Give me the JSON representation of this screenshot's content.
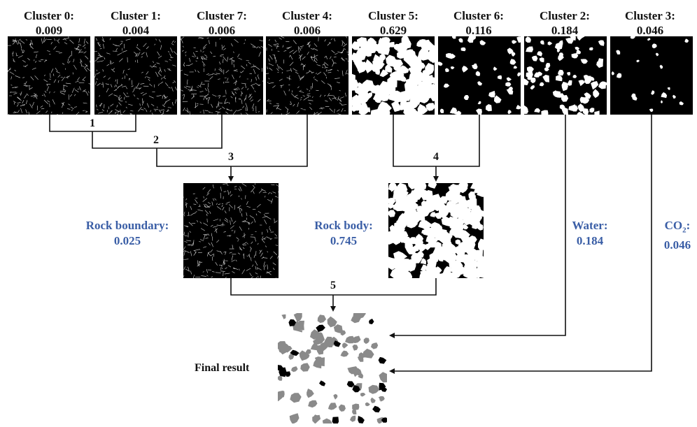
{
  "clusters": [
    {
      "name": "Cluster 0:",
      "value": "0.009",
      "texture": "boundary"
    },
    {
      "name": "Cluster 1:",
      "value": "0.004",
      "texture": "boundary"
    },
    {
      "name": "Cluster 7:",
      "value": "0.006",
      "texture": "boundary"
    },
    {
      "name": "Cluster 4:",
      "value": "0.006",
      "texture": "boundary"
    },
    {
      "name": "Cluster 5:",
      "value": "0.629",
      "texture": "body"
    },
    {
      "name": "Cluster 6:",
      "value": "0.116",
      "texture": "sparse-body"
    },
    {
      "name": "Cluster 2:",
      "value": "0.184",
      "texture": "water"
    },
    {
      "name": "Cluster 3:",
      "value": "0.046",
      "texture": "co2"
    }
  ],
  "steps": [
    "1",
    "2",
    "3",
    "4",
    "5"
  ],
  "phases": {
    "rock_boundary": {
      "name": "Rock boundary:",
      "value": "0.025"
    },
    "rock_body": {
      "name": "Rock body:",
      "value": "0.745"
    },
    "water": {
      "name": "Water:",
      "value": "0.184"
    },
    "co2": {
      "name": "CO",
      "sub": "2",
      "suffix": ":",
      "value": "0.046"
    }
  },
  "final_label": "Final result",
  "colors": {
    "phase_label": "#3a5ea6",
    "line": "#111111"
  }
}
